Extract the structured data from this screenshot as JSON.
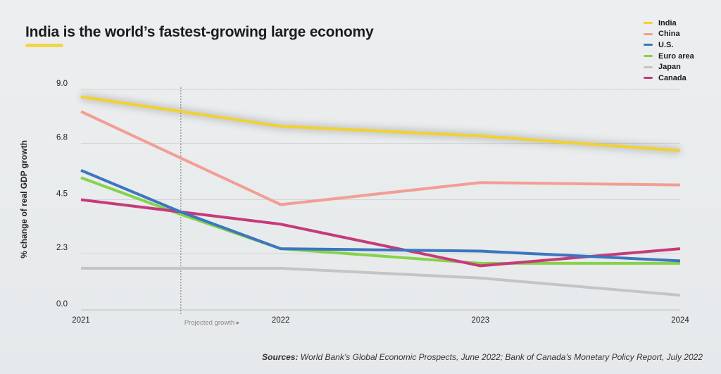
{
  "chart_data": {
    "type": "line",
    "title": "India is the world’s fastest-growing large economy",
    "ylabel": "% change of real GDP growth",
    "xlabel": "",
    "x": [
      2021,
      2022,
      2023,
      2024
    ],
    "x_tick_labels": [
      "2021",
      "2022",
      "2023",
      "2024"
    ],
    "y_ticks": [
      0.0,
      2.3,
      4.5,
      6.8,
      9.0
    ],
    "y_tick_labels": [
      "0.0",
      "2.3",
      "4.5",
      "6.8",
      "9.0"
    ],
    "ylim": [
      0,
      9.0
    ],
    "xlim": [
      2021,
      2024
    ],
    "grid": true,
    "legend_placement": "top-right",
    "projection_start": 2021.5,
    "projection_label": "Projected growth ▸",
    "series": [
      {
        "name": "India",
        "color": "#f2d130",
        "x": [
          2021,
          2021.5,
          2022,
          2023,
          2024
        ],
        "values": [
          8.7,
          8.1,
          7.5,
          7.1,
          6.5
        ]
      },
      {
        "name": "China",
        "color": "#f29e93",
        "x": [
          2021,
          2021.5,
          2022,
          2023,
          2024
        ],
        "values": [
          8.1,
          6.2,
          4.3,
          5.2,
          5.1
        ]
      },
      {
        "name": "U.S.",
        "color": "#3b76bf",
        "x": [
          2021,
          2021.5,
          2022,
          2023,
          2024
        ],
        "values": [
          5.7,
          4.0,
          2.5,
          2.4,
          2.0
        ]
      },
      {
        "name": "Euro area",
        "color": "#86d24a",
        "x": [
          2021,
          2021.5,
          2022,
          2023,
          2024
        ],
        "values": [
          5.4,
          3.9,
          2.5,
          1.9,
          1.9
        ]
      },
      {
        "name": "Japan",
        "color": "#c4c4c4",
        "x": [
          2021,
          2021.5,
          2022,
          2023,
          2024
        ],
        "values": [
          1.7,
          1.7,
          1.7,
          1.3,
          0.6
        ]
      },
      {
        "name": "Canada",
        "color": "#c63a7a",
        "x": [
          2021,
          2021.5,
          2022,
          2023,
          2024
        ],
        "values": [
          4.5,
          4.0,
          3.5,
          1.8,
          2.5
        ]
      }
    ]
  },
  "sources": {
    "label": "Sources:",
    "text": " World Bank’s Global Economic Prospects, June 2022; Bank of Canada’s Monetary Policy Report, July 2022"
  }
}
